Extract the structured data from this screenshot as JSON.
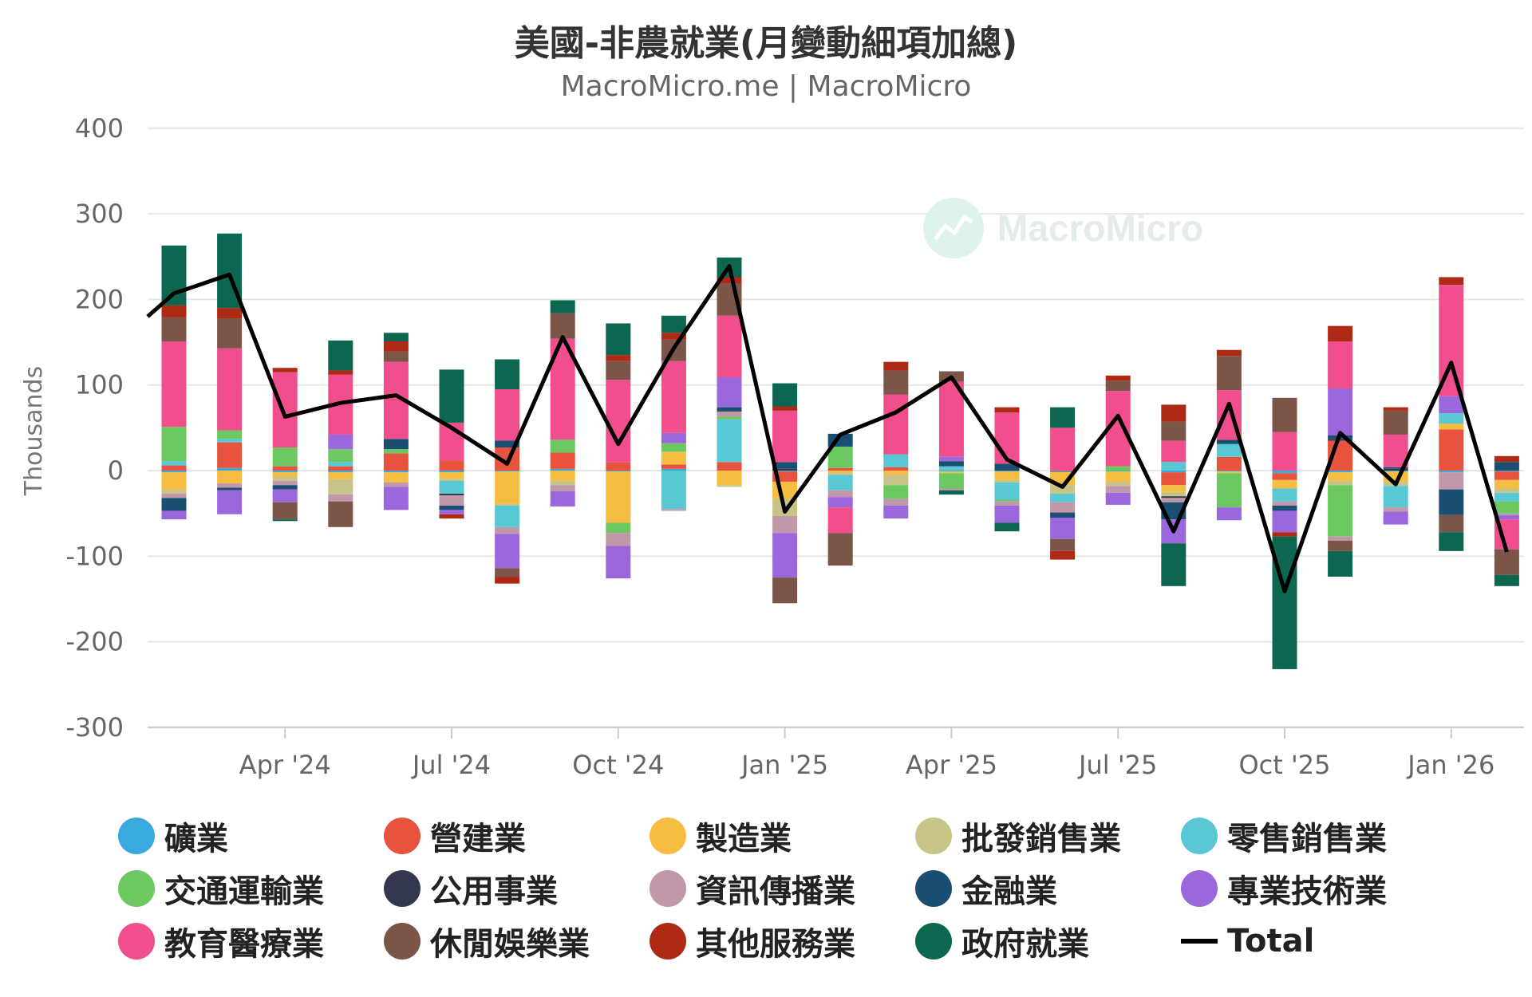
{
  "title": "美國-非農就業(月變動細項加總)",
  "subtitle": "MacroMicro.me | MacroMicro",
  "watermark": "MacroMicro",
  "chart_data": {
    "type": "bar",
    "stacked": true,
    "ylabel": "Thousands",
    "ylim": [
      -300,
      400
    ],
    "yticks": [
      400,
      300,
      200,
      100,
      0,
      -100,
      -200,
      -300
    ],
    "xtick_labels": [
      "Apr '24",
      "Jul '24",
      "Oct '24",
      "Jan '25",
      "Apr '25",
      "Jul '25",
      "Oct '25",
      "Jan '26"
    ],
    "xtick_index": [
      2,
      5,
      8,
      11,
      14,
      17,
      20,
      23
    ],
    "grid": true,
    "legend_position": "bottom",
    "categories": [
      "Feb 2024",
      "Mar 2024",
      "Apr 2024",
      "May 2024",
      "Jun 2024",
      "Jul 2024",
      "Aug 2024",
      "Sep 2024",
      "Oct 2024",
      "Nov 2024",
      "Dec 2024",
      "Jan 2025",
      "Feb 2025",
      "Mar 2025",
      "Apr 2025",
      "May 2025",
      "Jun 2025",
      "Jul 2025",
      "Aug 2025",
      "Sep 2025",
      "Oct 2025",
      "Nov 2025",
      "Dec 2025",
      "Jan 2026",
      "Feb 2026"
    ],
    "series": [
      {
        "name": "礦業",
        "color": "#3aa9dc",
        "values": [
          -2,
          3,
          -2,
          -2,
          -2,
          -2,
          -1,
          2,
          -1,
          2,
          0,
          -1,
          0,
          0,
          -1,
          -1,
          -1,
          -1,
          -2,
          -1,
          -3,
          -2,
          -1,
          -2,
          -1
        ]
      },
      {
        "name": "營建業",
        "color": "#e8533f",
        "values": [
          6,
          30,
          5,
          5,
          20,
          12,
          27,
          19,
          10,
          5,
          10,
          -12,
          3,
          4,
          0,
          0,
          -1,
          0,
          -15,
          16,
          -8,
          35,
          0,
          48,
          -10
        ]
      },
      {
        "name": "製造業",
        "color": "#f5bd42",
        "values": [
          -20,
          -15,
          -5,
          -8,
          -12,
          -8,
          -38,
          -12,
          -60,
          15,
          -17,
          -20,
          -3,
          -5,
          -2,
          -10,
          -15,
          -12,
          -8,
          -2,
          -10,
          -10,
          -12,
          7,
          -10
        ]
      },
      {
        "name": "批發銷售業",
        "color": "#c8c487",
        "values": [
          -5,
          0,
          -5,
          -18,
          0,
          -2,
          -2,
          -5,
          0,
          0,
          -2,
          -20,
          -2,
          -12,
          0,
          -3,
          -10,
          -5,
          -5,
          0,
          0,
          -5,
          -5,
          0,
          -5
        ]
      },
      {
        "name": "零售銷售業",
        "color": "#58c8d4",
        "values": [
          5,
          4,
          0,
          5,
          0,
          -15,
          -25,
          0,
          0,
          -45,
          50,
          0,
          -18,
          15,
          5,
          -20,
          -10,
          0,
          10,
          15,
          -15,
          0,
          -25,
          12,
          -10
        ]
      },
      {
        "name": "交通運輸業",
        "color": "#6cc961",
        "values": [
          40,
          10,
          22,
          15,
          5,
          0,
          0,
          15,
          -12,
          10,
          3,
          0,
          25,
          -16,
          -18,
          -2,
          0,
          5,
          0,
          -40,
          0,
          -60,
          0,
          0,
          -14
        ]
      },
      {
        "name": "公用事業",
        "color": "#34384f",
        "values": [
          0,
          0,
          0,
          0,
          0,
          -2,
          0,
          0,
          0,
          0,
          0,
          2,
          0,
          0,
          0,
          0,
          0,
          0,
          -2,
          0,
          0,
          2,
          2,
          0,
          0
        ]
      },
      {
        "name": "資訊傳播業",
        "color": "#c197aa",
        "values": [
          -5,
          -5,
          -5,
          -8,
          -5,
          -12,
          -8,
          -7,
          -15,
          -2,
          6,
          -20,
          -8,
          -8,
          -2,
          -5,
          -12,
          -8,
          -5,
          0,
          -5,
          -5,
          -5,
          -20,
          -2
        ]
      },
      {
        "name": "金融業",
        "color": "#1b4f72",
        "values": [
          -15,
          -3,
          -5,
          0,
          12,
          -5,
          8,
          0,
          0,
          0,
          5,
          8,
          15,
          0,
          6,
          8,
          -6,
          0,
          -20,
          5,
          -6,
          4,
          2,
          -30,
          10
        ]
      },
      {
        "name": "專業技術業",
        "color": "#9a67dd",
        "values": [
          -10,
          -28,
          -15,
          17,
          -27,
          -5,
          -40,
          -18,
          -38,
          12,
          35,
          -52,
          -12,
          -15,
          5,
          -20,
          -25,
          -14,
          -28,
          -15,
          -25,
          55,
          -15,
          20,
          -5
        ]
      },
      {
        "name": "教育醫療業",
        "color": "#f04e8c",
        "values": [
          100,
          96,
          88,
          70,
          90,
          44,
          60,
          118,
          96,
          84,
          72,
          60,
          -30,
          70,
          88,
          60,
          50,
          88,
          25,
          58,
          45,
          55,
          38,
          130,
          -35
        ]
      },
      {
        "name": "休閒娛樂業",
        "color": "#7b5548",
        "values": [
          28,
          35,
          -20,
          -30,
          12,
          0,
          -10,
          30,
          22,
          25,
          38,
          -30,
          -38,
          28,
          12,
          0,
          -14,
          12,
          22,
          40,
          40,
          -12,
          28,
          -20,
          -30
        ]
      },
      {
        "name": "其他服務業",
        "color": "#ae2a15",
        "values": [
          14,
          12,
          5,
          5,
          12,
          -5,
          -8,
          0,
          7,
          8,
          7,
          5,
          0,
          10,
          0,
          6,
          -10,
          6,
          20,
          7,
          -5,
          18,
          4,
          9,
          7
        ]
      },
      {
        "name": "政府就業",
        "color": "#0c6650",
        "values": [
          70,
          87,
          -2,
          35,
          10,
          62,
          35,
          15,
          37,
          20,
          23,
          27,
          0,
          0,
          -5,
          -10,
          24,
          0,
          -50,
          0,
          -155,
          -30,
          0,
          -22,
          -13
        ]
      }
    ],
    "total": {
      "name": "Total",
      "color": "#000000",
      "values": [
        207,
        229,
        63,
        79,
        88,
        50,
        8,
        156,
        31,
        143,
        239,
        -48,
        42,
        68,
        109,
        13,
        -19,
        64,
        -71,
        78,
        -141,
        44,
        -16,
        126,
        -95
      ]
    }
  }
}
